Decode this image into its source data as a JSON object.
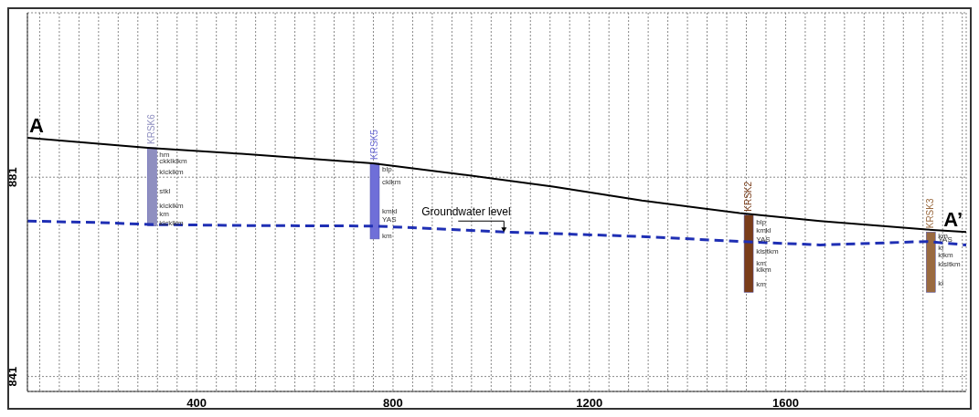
{
  "chart_data": {
    "type": "line",
    "xlim": [
      55,
      1968
    ],
    "ylim": [
      838,
      914
    ],
    "xticks": [
      {
        "value": 80,
        "label": null
      },
      {
        "value": 120,
        "label": null
      },
      {
        "value": 160,
        "label": null
      },
      {
        "value": 200,
        "label": null
      },
      {
        "value": 240,
        "label": null
      },
      {
        "value": 280,
        "label": null
      },
      {
        "value": 320,
        "label": null
      },
      {
        "value": 360,
        "label": null
      },
      400,
      {
        "value": 440,
        "label": null
      },
      {
        "value": 480,
        "label": null
      },
      {
        "value": 520,
        "label": null
      },
      {
        "value": 560,
        "label": null
      },
      {
        "value": 600,
        "label": null
      },
      {
        "value": 640,
        "label": null
      },
      {
        "value": 680,
        "label": null
      },
      {
        "value": 720,
        "label": null
      },
      {
        "value": 760,
        "label": null
      },
      800,
      {
        "value": 840,
        "label": null
      },
      {
        "value": 880,
        "label": null
      },
      {
        "value": 920,
        "label": null
      },
      {
        "value": 960,
        "label": null
      },
      {
        "value": 1000,
        "label": null
      },
      {
        "value": 1040,
        "label": null
      },
      {
        "value": 1080,
        "label": null
      },
      {
        "value": 1120,
        "label": null
      },
      {
        "value": 1160,
        "label": null
      },
      1200,
      {
        "value": 1240,
        "label": null
      },
      {
        "value": 1280,
        "label": null
      },
      {
        "value": 1320,
        "label": null
      },
      {
        "value": 1360,
        "label": null
      },
      {
        "value": 1400,
        "label": null
      },
      {
        "value": 1440,
        "label": null
      },
      {
        "value": 1480,
        "label": null
      },
      {
        "value": 1520,
        "label": null
      },
      {
        "value": 1560,
        "label": null
      },
      1600,
      {
        "value": 1640,
        "label": null
      },
      {
        "value": 1680,
        "label": null
      },
      {
        "value": 1720,
        "label": null
      },
      {
        "value": 1760,
        "label": null
      },
      {
        "value": 1800,
        "label": null
      },
      {
        "value": 1840,
        "label": null
      },
      {
        "value": 1880,
        "label": null
      },
      {
        "value": 1920,
        "label": null
      },
      {
        "value": 1960,
        "label": null
      }
    ],
    "yticks": [
      841,
      881
    ],
    "grid": true,
    "legend": false,
    "marker": "none",
    "series": [
      {
        "color": "#000000",
        "line_style": "solid",
        "x": [
          55,
          300,
          491,
          759,
          944,
          1126,
          1307,
          1506,
          1670,
          1887,
          1968
        ],
        "values": [
          888.9,
          886.9,
          885.7,
          883.8,
          881.5,
          879.1,
          876.3,
          873.8,
          872.2,
          870.5,
          870.0
        ]
      },
      {
        "name": "Groundwater level",
        "color": "#1f2fb4",
        "line_style": "dashed",
        "x": [
          55,
          200,
          309,
          500,
          763,
          1026,
          1307,
          1506,
          1670,
          1887,
          1968
        ],
        "values": [
          872.2,
          871.9,
          871.5,
          871.3,
          871.2,
          870.0,
          869.1,
          868.1,
          867.4,
          868.1,
          867.4
        ]
      },
      {
        "type": "bar",
        "name": "KRSK6",
        "color": "#8f8fc0",
        "x": [
          309
        ],
        "base": [
          871.2
        ],
        "values": [
          15.7
        ]
      },
      {
        "type": "bar",
        "name": "KRSK5",
        "color": "#6f6fd8",
        "x": [
          763
        ],
        "base": [
          868.6
        ],
        "values": [
          15.2
        ]
      },
      {
        "type": "bar",
        "name": "KRSK2",
        "color": "#7a3d1a",
        "x": [
          1525
        ],
        "base": [
          857.9
        ],
        "values": [
          15.5
        ]
      },
      {
        "type": "bar",
        "name": "KRSK3",
        "color": "#9a6a40",
        "x": [
          1896
        ],
        "base": [
          857.9
        ],
        "values": [
          12.1
        ]
      }
    ],
    "annotations": [
      "A",
      "A’",
      {
        "text": "hm",
        "x": 309,
        "y": 885.7
      },
      {
        "text": "ckklklkm",
        "x": 309,
        "y": 884.4
      },
      {
        "text": "klcklkm",
        "x": 309,
        "y": 882.2
      },
      {
        "text": "stkl",
        "x": 309,
        "y": 878.2
      },
      {
        "text": "klcklkm",
        "x": 309,
        "y": 875.3
      },
      {
        "text": "km",
        "x": 309,
        "y": 873.8
      },
      {
        "text": "klcklkm",
        "x": 309,
        "y": 871.9
      },
      {
        "text": "blp",
        "x": 763,
        "y": 882.6
      },
      {
        "text": "cklkm",
        "x": 763,
        "y": 880.1
      },
      {
        "text": "kmkl",
        "x": 763,
        "y": 874.3
      },
      {
        "text": "YAS",
        "x": 763,
        "y": 872.6
      },
      {
        "text": "km",
        "x": 763,
        "y": 869.4
      },
      {
        "text": "blp",
        "x": 1525,
        "y": 872.0
      },
      {
        "text": "kmkl",
        "x": 1525,
        "y": 870.5
      },
      {
        "text": "YAS",
        "x": 1525,
        "y": 868.6
      },
      {
        "text": "klsltkm",
        "x": 1525,
        "y": 866.2
      },
      {
        "text": "km",
        "x": 1525,
        "y": 863.9
      },
      {
        "text": "klkm",
        "x": 1525,
        "y": 862.6
      },
      {
        "text": "km",
        "x": 1525,
        "y": 859.6
      },
      {
        "text": "km",
        "x": 1896,
        "y": 869.4
      },
      {
        "text": "YAS",
        "x": 1896,
        "y": 868.6
      },
      {
        "text": "kl",
        "x": 1896,
        "y": 866.9
      },
      {
        "text": "klkm",
        "x": 1896,
        "y": 865.5
      },
      {
        "text": "klsltkm",
        "x": 1896,
        "y": 863.6
      },
      {
        "text": "kl",
        "x": 1896,
        "y": 859.8
      }
    ]
  }
}
